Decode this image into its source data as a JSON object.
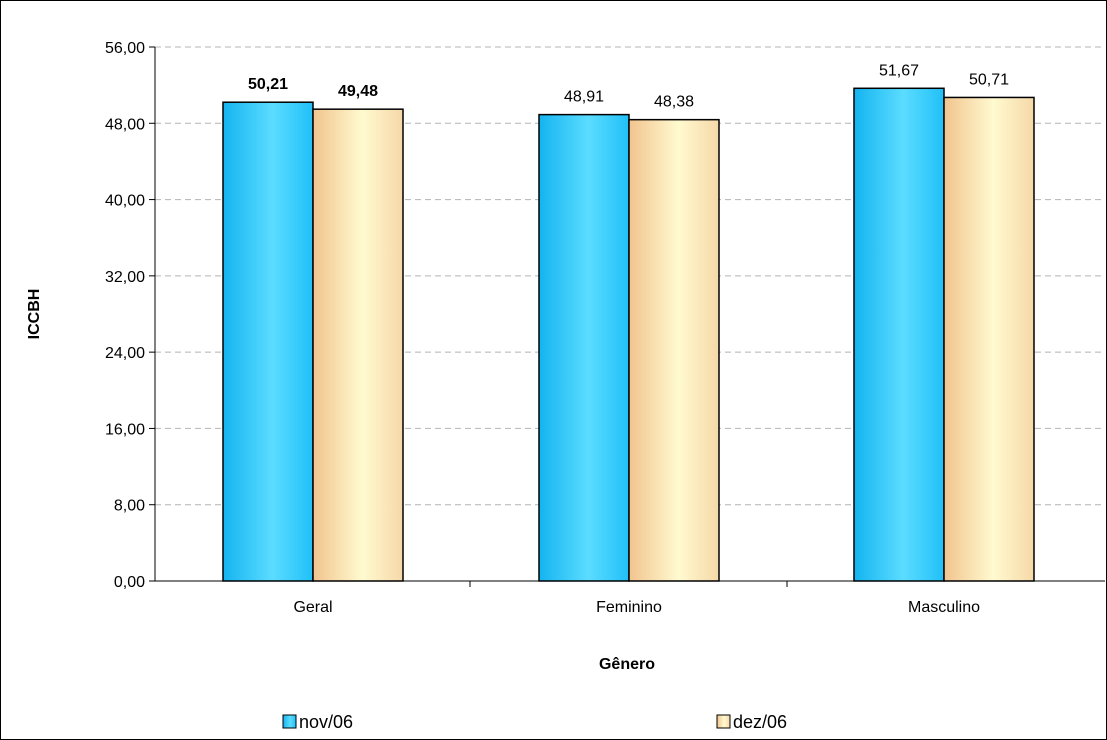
{
  "chart_data": {
    "type": "bar",
    "categories": [
      "Geral",
      "Feminino",
      "Masculino"
    ],
    "series": [
      {
        "name": "nov/06",
        "values": [
          50.21,
          48.91,
          51.67
        ],
        "labels": [
          "50,21",
          "48,91",
          "51,67"
        ],
        "color": "#33ccff"
      },
      {
        "name": "dez/06",
        "values": [
          49.48,
          48.38,
          50.71
        ],
        "labels": [
          "49,48",
          "48,38",
          "50,71"
        ],
        "color": "#ffe9b3"
      }
    ],
    "bold_labels_category": "Geral",
    "title": "",
    "xlabel": "Gênero",
    "ylabel": "ICCBH",
    "ylim": [
      0,
      56
    ],
    "yticks": [
      0,
      8,
      16,
      24,
      32,
      40,
      48,
      56
    ],
    "ytick_labels": [
      "0,00",
      "8,00",
      "16,00",
      "24,00",
      "32,00",
      "40,00",
      "48,00",
      "56,00"
    ],
    "grid": "horizontal dashed",
    "legend_position": "bottom"
  }
}
